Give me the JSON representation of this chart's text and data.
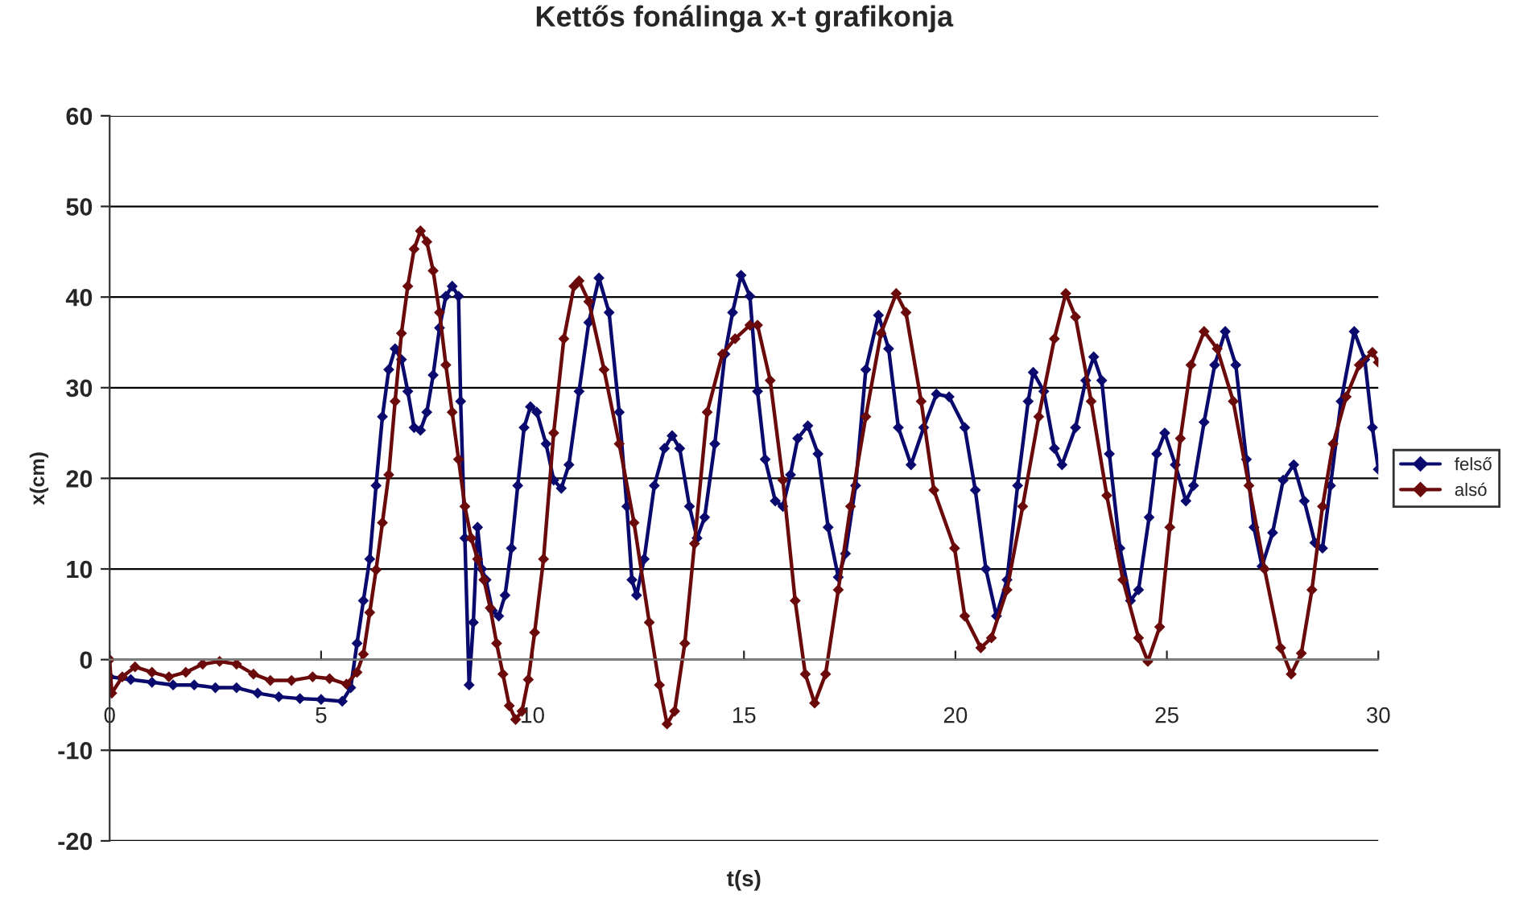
{
  "chart_data": {
    "type": "line",
    "title": "Kettős fonálinga x-t grafikonja",
    "xlabel": "t(s)",
    "ylabel": "x(cm)",
    "xlim": [
      0,
      30
    ],
    "xticks": [
      0,
      5,
      10,
      15,
      20,
      25,
      30
    ],
    "ylim": [
      -20,
      60
    ],
    "yticks": [
      -20,
      -10,
      0,
      10,
      20,
      30,
      40,
      50,
      60
    ],
    "grid": "y",
    "legend": "right",
    "marker": "diamond",
    "line_style": "solid",
    "series": [
      {
        "name": "felső",
        "color": "#0a0a6e",
        "x": [
          0,
          0.5,
          1,
          1.5,
          2,
          2.5,
          3,
          3.5,
          4,
          4.5,
          5,
          5.5,
          5.7,
          5.85,
          6,
          6.15,
          6.3,
          6.45,
          6.6,
          6.75,
          6.9,
          7.05,
          7.2,
          7.35,
          7.5,
          7.65,
          7.8,
          7.95,
          8.1,
          8.25,
          8.3,
          8.4,
          8.5,
          8.6,
          8.7,
          8.8,
          8.9,
          9.05,
          9.2,
          9.35,
          9.5,
          9.65,
          9.8,
          9.95,
          10.1,
          10.32,
          10.5,
          10.68,
          10.86,
          11.1,
          11.33,
          11.57,
          11.81,
          12.05,
          12.23,
          12.35,
          12.46,
          12.64,
          12.88,
          13.12,
          13.3,
          13.48,
          13.71,
          13.89,
          14.07,
          14.31,
          14.55,
          14.73,
          14.93,
          15.14,
          15.32,
          15.5,
          15.74,
          15.92,
          16.1,
          16.27,
          16.51,
          16.75,
          16.99,
          17.23,
          17.4,
          17.64,
          17.88,
          18.18,
          18.42,
          18.65,
          18.95,
          19.25,
          19.55,
          19.85,
          20.22,
          20.47,
          20.72,
          20.97,
          21.22,
          21.47,
          21.72,
          21.84,
          22.09,
          22.34,
          22.52,
          22.84,
          23.08,
          23.27,
          23.46,
          23.64,
          23.89,
          24.14,
          24.33,
          24.58,
          24.76,
          24.95,
          25.2,
          25.45,
          25.63,
          25.88,
          26.13,
          26.38,
          26.63,
          26.88,
          27.06,
          27.25,
          27.5,
          27.75,
          28,
          28.25,
          28.5,
          28.68,
          28.87,
          29.12,
          29.43,
          29.68,
          29.86,
          30
        ],
        "values": [
          -1.9,
          -2.2,
          -2.5,
          -2.8,
          -2.8,
          -3.1,
          -3.1,
          -3.7,
          -4.1,
          -4.3,
          -4.4,
          -4.6,
          -3.1,
          1.8,
          6.5,
          11.1,
          19.2,
          26.8,
          32,
          34.3,
          33.1,
          29.6,
          25.6,
          25.3,
          27.3,
          31.4,
          36.6,
          40.1,
          41.2,
          40.1,
          28.5,
          13.4,
          -2.8,
          4.1,
          14.6,
          10,
          8.8,
          5.4,
          4.8,
          7.1,
          12.3,
          19.2,
          25.6,
          27.9,
          27.3,
          23.8,
          19.8,
          18.9,
          21.5,
          29.6,
          37.2,
          42.1,
          38.3,
          27.3,
          16.9,
          8.8,
          7.1,
          11.1,
          19.2,
          23.3,
          24.7,
          23.3,
          16.9,
          13.4,
          15.7,
          23.8,
          33.7,
          38.3,
          42.4,
          40.1,
          29.6,
          22.1,
          17.5,
          16.9,
          20.4,
          24.4,
          25.8,
          22.7,
          14.6,
          9.1,
          11.7,
          19.2,
          32,
          38,
          34.3,
          25.6,
          21.5,
          25.6,
          29.3,
          29,
          25.6,
          18.7,
          10,
          4.8,
          8.8,
          19.2,
          28.5,
          31.7,
          29.6,
          23.3,
          21.5,
          25.6,
          30.8,
          33.4,
          30.8,
          22.7,
          12.3,
          6.5,
          7.7,
          15.7,
          22.7,
          25,
          21.5,
          17.5,
          19.2,
          26.2,
          32.5,
          36.2,
          32.5,
          22.1,
          14.6,
          10.3,
          14,
          19.8,
          21.5,
          17.5,
          12.9,
          12.3,
          19.2,
          28.5,
          36.2,
          33.1,
          25.6,
          21
        ]
      },
      {
        "name": "alsó",
        "color": "#6b0a0a",
        "x": [
          0,
          0.05,
          0.3,
          0.6,
          1,
          1.4,
          1.8,
          2.2,
          2.6,
          3,
          3.4,
          3.8,
          4.3,
          4.8,
          5.2,
          5.6,
          5.85,
          6,
          6.15,
          6.3,
          6.45,
          6.6,
          6.75,
          6.9,
          7.05,
          7.2,
          7.35,
          7.5,
          7.65,
          7.8,
          7.95,
          8.1,
          8.25,
          8.4,
          8.55,
          8.7,
          8.85,
          9,
          9.15,
          9.3,
          9.45,
          9.6,
          9.75,
          9.9,
          10.05,
          10.26,
          10.5,
          10.74,
          10.98,
          11.1,
          11.33,
          11.69,
          12.05,
          12.4,
          12.76,
          13,
          13.18,
          13.36,
          13.6,
          13.83,
          14.13,
          14.49,
          14.79,
          15.14,
          15.32,
          15.62,
          15.92,
          16.21,
          16.45,
          16.67,
          16.93,
          17.23,
          17.52,
          17.88,
          18.24,
          18.6,
          18.83,
          19.19,
          19.49,
          19.98,
          20.22,
          20.6,
          20.85,
          21.22,
          21.59,
          21.97,
          22.34,
          22.61,
          22.84,
          23.21,
          23.58,
          23.96,
          24.33,
          24.55,
          24.83,
          25.07,
          25.32,
          25.57,
          25.88,
          26.19,
          26.57,
          26.94,
          27.31,
          27.69,
          27.94,
          28.18,
          28.43,
          28.68,
          28.93,
          29.24,
          29.55,
          29.86,
          30
        ],
        "values": [
          0,
          -3.7,
          -1.9,
          -0.8,
          -1.4,
          -1.9,
          -1.4,
          -0.5,
          -0.2,
          -0.5,
          -1.6,
          -2.3,
          -2.3,
          -1.9,
          -2.1,
          -2.7,
          -1.4,
          0.6,
          5.2,
          9.9,
          15.1,
          20.4,
          28.5,
          36,
          41.2,
          45.3,
          47.3,
          46.1,
          42.9,
          38.3,
          32.5,
          27.3,
          22.1,
          16.9,
          13.4,
          11.1,
          8.8,
          5.7,
          1.8,
          -1.6,
          -5.1,
          -6.6,
          -5.7,
          -2.2,
          3,
          11.1,
          25,
          35.4,
          41.2,
          41.8,
          39.5,
          32,
          23.8,
          15.1,
          4.1,
          -2.8,
          -7.1,
          -5.7,
          1.8,
          12.8,
          27.3,
          33.7,
          35.4,
          36.9,
          36.9,
          30.8,
          19.8,
          6.5,
          -1.6,
          -4.8,
          -1.6,
          7.7,
          16.9,
          26.8,
          36,
          40.4,
          38.3,
          28.5,
          18.7,
          12.3,
          4.8,
          1.3,
          2.4,
          7.7,
          16.9,
          26.8,
          35.4,
          40.4,
          37.8,
          28.5,
          18.1,
          8.8,
          2.4,
          -0.2,
          3.6,
          14.6,
          24.4,
          32.5,
          36.2,
          34.3,
          28.5,
          19.2,
          10,
          1.3,
          -1.6,
          0.7,
          7.7,
          16.9,
          23.8,
          29,
          32.5,
          33.9,
          32.8
        ]
      }
    ]
  }
}
